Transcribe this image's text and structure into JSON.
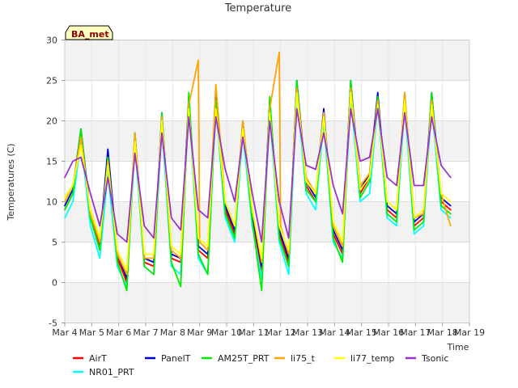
{
  "chart_data": {
    "type": "line",
    "title": "Temperature",
    "xlabel": "Time",
    "ylabel": "Temperatures (C)",
    "badge": "BA_met",
    "ylim": [
      -5,
      30
    ],
    "yticks": [
      -5,
      0,
      5,
      10,
      15,
      20,
      25,
      30
    ],
    "xlim": [
      4,
      19
    ],
    "xticks": [
      {
        "x": 4,
        "label": "Mar 4"
      },
      {
        "x": 5,
        "label": "Mar 5"
      },
      {
        "x": 6,
        "label": "Mar 6"
      },
      {
        "x": 7,
        "label": "Mar 7"
      },
      {
        "x": 8,
        "label": "Mar 8"
      },
      {
        "x": 9,
        "label": "Mar 9"
      },
      {
        "x": 10,
        "label": "Mar 10"
      },
      {
        "x": 11,
        "label": "Mar 11"
      },
      {
        "x": 12,
        "label": "Mar 12"
      },
      {
        "x": 13,
        "label": "Mar 13"
      },
      {
        "x": 14,
        "label": "Mar 14"
      },
      {
        "x": 15,
        "label": "Mar 15"
      },
      {
        "x": 16,
        "label": "Mar 16"
      },
      {
        "x": 17,
        "label": "Mar 17"
      },
      {
        "x": 18,
        "label": "Mar 18"
      },
      {
        "x": 19,
        "label": "Mar 19"
      }
    ],
    "grid": true,
    "legend_position": "bottom",
    "series": [
      {
        "name": "AirT",
        "color": "#ff0000",
        "x": [
          4.0,
          4.3,
          4.6,
          4.95,
          5.3,
          5.6,
          5.95,
          6.3,
          6.6,
          6.95,
          7.3,
          7.6,
          7.95,
          8.3,
          8.6,
          8.95,
          9.3,
          9.6,
          9.95,
          10.3,
          10.6,
          10.95,
          11.3,
          11.6,
          11.95,
          12.3,
          12.6,
          12.95,
          13.3,
          13.6,
          13.95,
          14.3,
          14.6,
          14.95,
          15.3,
          15.6,
          15.95,
          16.3,
          16.6,
          16.95,
          17.3,
          17.6,
          17.95,
          18.3
        ],
        "y": [
          9,
          11,
          18.5,
          8,
          4.5,
          16,
          3,
          0,
          18,
          2.5,
          2,
          20.5,
          3,
          2.5,
          22.5,
          4,
          3,
          22.5,
          9,
          6,
          19.5,
          8,
          1.5,
          22,
          6,
          2.5,
          24.5,
          12,
          10,
          21,
          6,
          3.5,
          24.5,
          11,
          13,
          23,
          9,
          8,
          23,
          7,
          8,
          23,
          10,
          9
        ]
      },
      {
        "name": "NR01_PRT",
        "color": "#00ffff",
        "x": [
          4.0,
          4.3,
          4.6,
          4.95,
          5.3,
          5.6,
          5.95,
          6.3,
          6.6,
          6.95,
          7.3,
          7.6,
          7.95,
          8.3,
          8.6,
          8.95,
          9.3,
          9.6,
          9.95,
          10.3,
          10.6,
          10.95,
          11.3,
          11.6,
          11.95,
          12.3,
          12.6,
          12.95,
          13.3,
          13.6,
          13.95,
          14.3,
          14.6,
          14.95,
          15.3,
          15.6,
          15.95,
          16.3,
          16.6,
          16.95,
          17.3,
          17.6,
          17.95,
          18.3
        ],
        "y": [
          8,
          10,
          17.5,
          7,
          3,
          13.5,
          2,
          -0.5,
          17,
          2,
          1,
          19.5,
          2,
          1,
          22,
          3,
          1,
          21.5,
          8,
          5,
          18.5,
          7,
          0.5,
          21,
          5,
          1,
          23.5,
          11,
          9,
          20,
          5,
          3,
          23,
          10,
          11,
          22,
          8,
          7,
          22,
          6,
          7,
          22,
          9,
          8
        ]
      },
      {
        "name": "PanelT",
        "color": "#0000cd",
        "x": [
          4.0,
          4.3,
          4.6,
          4.95,
          5.3,
          5.6,
          5.95,
          6.3,
          6.6,
          6.95,
          7.3,
          7.6,
          7.95,
          8.3,
          8.6,
          8.95,
          9.3,
          9.6,
          9.95,
          10.3,
          10.6,
          10.95,
          11.3,
          11.6,
          11.95,
          12.3,
          12.6,
          12.95,
          13.3,
          13.6,
          13.95,
          14.3,
          14.6,
          14.95,
          15.3,
          15.6,
          15.95,
          16.3,
          16.6,
          16.95,
          17.3,
          17.6,
          17.95,
          18.3
        ],
        "y": [
          9.5,
          11.5,
          19,
          8.5,
          5,
          16.5,
          3.5,
          0.5,
          18.5,
          3,
          2.5,
          21,
          3.5,
          3,
          23,
          4.5,
          3.5,
          23,
          9.5,
          6.5,
          20,
          8.5,
          2,
          22.5,
          6.5,
          3,
          25,
          12.5,
          10.5,
          21.5,
          6.5,
          4,
          25,
          11.5,
          13.5,
          23.5,
          9.5,
          8.5,
          23.5,
          7.5,
          8.5,
          23.5,
          10.5,
          9.5
        ]
      },
      {
        "name": "AM25T_PRT",
        "color": "#00ee00",
        "x": [
          4.0,
          4.3,
          4.6,
          4.95,
          5.3,
          5.6,
          5.95,
          6.3,
          6.6,
          6.95,
          7.3,
          7.6,
          7.95,
          8.3,
          8.6,
          8.95,
          9.3,
          9.6,
          9.95,
          10.3,
          10.6,
          10.95,
          11.3,
          11.6,
          11.95,
          12.3,
          12.6,
          12.95,
          13.3,
          13.6,
          13.95,
          14.3,
          14.6,
          14.95,
          15.3,
          15.6,
          15.95,
          16.3,
          16.6,
          16.95,
          17.3,
          17.6,
          17.95,
          18.3
        ],
        "y": [
          9,
          11,
          19,
          8,
          4,
          15.5,
          2.5,
          -1,
          18.5,
          2,
          1,
          21,
          2.5,
          -0.5,
          23.5,
          3.5,
          1,
          22.5,
          8.5,
          5.5,
          20,
          7.5,
          -1,
          23,
          5.5,
          2,
          25,
          11.5,
          10,
          21,
          5.5,
          2.5,
          25,
          10.5,
          12.5,
          23,
          8.5,
          7.5,
          23.5,
          6.5,
          7.5,
          23.5,
          9.5,
          8.5
        ]
      },
      {
        "name": "li75_t",
        "color": "#ffa500",
        "x": [
          4.0,
          4.3,
          4.6,
          4.95,
          5.3,
          5.6,
          5.95,
          6.3,
          6.6,
          6.95,
          7.3,
          7.6,
          7.95,
          8.3,
          8.6,
          8.95,
          9.0,
          9.3,
          9.6,
          9.95,
          10.3,
          10.6,
          10.95,
          11.3,
          11.6,
          11.95,
          12.0,
          12.3,
          12.6,
          12.95,
          13.3,
          13.6,
          13.95,
          14.3,
          14.6,
          14.95,
          15.3,
          15.6,
          15.95,
          16.3,
          16.6,
          16.95,
          17.3,
          17.6,
          17.95,
          18.3
        ],
        "y": [
          10,
          12,
          18,
          8.5,
          5,
          15,
          3.5,
          1,
          18.5,
          3,
          3,
          20.5,
          4,
          3,
          22,
          27.5,
          5,
          4,
          24.5,
          10,
          7,
          20,
          9,
          2.5,
          21.5,
          28.5,
          7,
          3.5,
          24,
          13,
          11,
          21,
          7,
          4.5,
          24,
          12,
          13.5,
          22.5,
          10,
          9,
          23.5,
          8,
          8.5,
          22.5,
          11,
          7
        ]
      },
      {
        "name": "li77_temp",
        "color": "#ffff00",
        "x": [
          4.0,
          4.3,
          4.6,
          4.95,
          5.3,
          5.6,
          5.95,
          6.3,
          6.6,
          6.95,
          7.3,
          7.6,
          7.95,
          8.3,
          8.6,
          8.95,
          9.3,
          9.6,
          9.95,
          10.3,
          10.6,
          10.95,
          11.3,
          11.6,
          11.95,
          12.3,
          12.6,
          12.95,
          13.3,
          13.6,
          13.95,
          14.3,
          14.6,
          14.95,
          15.3,
          15.6,
          15.95,
          16.3,
          16.6,
          16.95,
          17.3,
          17.6,
          17.95,
          18.3
        ],
        "y": [
          10.5,
          12,
          17,
          9,
          5.5,
          14.5,
          4,
          1.5,
          17.5,
          3.5,
          3.5,
          20,
          4.5,
          3.5,
          21.5,
          5.5,
          4.5,
          21.5,
          10,
          7,
          19,
          9,
          3,
          21,
          7,
          4,
          23.5,
          12.5,
          11,
          20.5,
          7.5,
          5,
          23.5,
          11.5,
          13,
          22,
          10,
          9,
          22.5,
          8,
          9,
          22,
          11,
          10
        ]
      },
      {
        "name": "Tsonic",
        "color": "#9932cc",
        "x": [
          4.0,
          4.3,
          4.6,
          4.95,
          5.3,
          5.6,
          5.95,
          6.3,
          6.6,
          6.95,
          7.3,
          7.6,
          7.95,
          8.3,
          8.6,
          8.95,
          9.3,
          9.6,
          9.95,
          10.3,
          10.6,
          10.95,
          11.3,
          11.6,
          11.95,
          12.3,
          12.6,
          12.95,
          13.3,
          13.6,
          13.95,
          14.3,
          14.6,
          14.95,
          15.3,
          15.6,
          15.95,
          16.3,
          16.6,
          16.95,
          17.3,
          17.6,
          17.95,
          18.3
        ],
        "y": [
          13,
          15,
          15.5,
          11,
          7,
          13,
          6,
          5,
          16,
          7,
          5.5,
          18.5,
          8,
          6.5,
          20.5,
          9,
          8,
          20.5,
          14,
          10,
          18,
          11,
          5,
          20,
          10,
          5.5,
          21.5,
          14.5,
          14,
          18.5,
          12,
          8.5,
          21.5,
          15,
          15.5,
          21.5,
          13,
          12,
          21,
          12,
          12,
          20.5,
          14.5,
          13
        ]
      }
    ]
  }
}
